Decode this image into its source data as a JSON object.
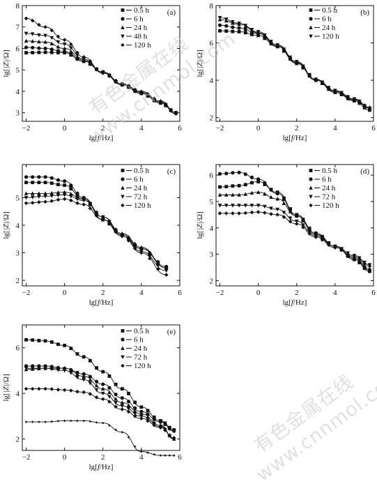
{
  "watermark": {
    "cn": "有色金属在线",
    "url": "www.cnnmol.com"
  },
  "colors": {
    "ink": "#111111",
    "background": "#ffffff"
  },
  "chart_data": [
    {
      "type": "line",
      "panel_label": "(a)",
      "xlabel": "lg[f/Hz]",
      "ylabel": "lg[|Z|/Ω]",
      "xlim": [
        -2.2,
        6
      ],
      "ylim": [
        2.6,
        8
      ],
      "xticks": [
        -2,
        0,
        2,
        4,
        6
      ],
      "yticks": [
        3,
        4,
        5,
        6,
        7,
        8
      ],
      "series": [
        {
          "name": "0.5 h",
          "marker": "square",
          "x": [
            -2,
            -1,
            0,
            1,
            2,
            3,
            4,
            5,
            5.8
          ],
          "y": [
            5.8,
            5.82,
            5.8,
            5.4,
            4.9,
            4.3,
            3.9,
            3.45,
            3.0
          ]
        },
        {
          "name": "6 h",
          "marker": "circle",
          "x": [
            -2,
            -1,
            0,
            1,
            2,
            3,
            4,
            5,
            5.8
          ],
          "y": [
            6.05,
            6.0,
            5.85,
            5.4,
            4.9,
            4.35,
            3.95,
            3.5,
            3.0
          ]
        },
        {
          "name": "24 h",
          "marker": "triangle-up",
          "x": [
            -2,
            -1,
            0,
            1,
            2,
            3,
            4,
            5,
            5.8
          ],
          "y": [
            6.35,
            6.3,
            6.0,
            5.45,
            4.9,
            4.35,
            4.0,
            3.55,
            3.0
          ]
        },
        {
          "name": "48 h",
          "marker": "triangle-down",
          "x": [
            -2,
            -1,
            0,
            1,
            2,
            3,
            4,
            5,
            5.8
          ],
          "y": [
            6.7,
            6.6,
            6.2,
            5.5,
            4.85,
            4.3,
            3.95,
            3.5,
            3.0
          ]
        },
        {
          "name": "120 h",
          "marker": "diamond",
          "x": [
            -2,
            -1,
            0,
            1,
            2,
            3,
            4,
            5,
            5.8
          ],
          "y": [
            7.4,
            7.0,
            6.4,
            5.6,
            4.85,
            4.3,
            3.9,
            3.5,
            2.95
          ]
        }
      ]
    },
    {
      "type": "line",
      "panel_label": "(b)",
      "xlabel": "lg[f/Hz]",
      "ylabel": "lg[|Z|/Ω]",
      "xlim": [
        -2.2,
        6
      ],
      "ylim": [
        1.8,
        8
      ],
      "xticks": [
        -2,
        0,
        2,
        4,
        6
      ],
      "yticks": [
        2,
        4,
        6,
        8
      ],
      "series": [
        {
          "name": "0.5 h",
          "marker": "square",
          "x": [
            -2,
            -1,
            0,
            1,
            2,
            3,
            4,
            5,
            5.8
          ],
          "y": [
            6.65,
            6.6,
            6.4,
            5.8,
            4.9,
            4.0,
            3.35,
            2.9,
            2.4
          ]
        },
        {
          "name": "6 h",
          "marker": "circle",
          "x": [
            -2,
            -1,
            0,
            1,
            2,
            3,
            4,
            5,
            5.8
          ],
          "y": [
            6.95,
            6.8,
            6.5,
            5.85,
            4.95,
            4.0,
            3.4,
            2.95,
            2.5
          ]
        },
        {
          "name": "24 h",
          "marker": "triangle-up",
          "x": [
            -2,
            -1,
            0,
            1,
            2,
            3,
            4,
            5,
            5.8
          ],
          "y": [
            7.25,
            7.0,
            6.55,
            5.85,
            4.95,
            4.05,
            3.45,
            3.0,
            2.55
          ]
        },
        {
          "name": "120 h",
          "marker": "triangle-down",
          "x": [
            -2,
            -1,
            0,
            1,
            2,
            3,
            4,
            5,
            5.8
          ],
          "y": [
            7.35,
            7.05,
            6.6,
            5.9,
            5.0,
            4.05,
            3.45,
            3.0,
            2.5
          ]
        }
      ]
    },
    {
      "type": "line",
      "panel_label": "(c)",
      "xlabel": "lg[f/Hz]",
      "ylabel": "lg[|Z|/Ω]",
      "xlim": [
        -2.2,
        6
      ],
      "ylim": [
        1.8,
        6.2
      ],
      "xticks": [
        -2,
        0,
        2,
        4,
        6
      ],
      "yticks": [
        2,
        3,
        4,
        5
      ],
      "series": [
        {
          "name": "0.5 h",
          "marker": "square",
          "x": [
            -2,
            -1,
            0,
            1,
            2,
            3,
            4,
            5.3
          ],
          "y": [
            5.55,
            5.55,
            5.45,
            4.95,
            4.2,
            3.65,
            3.15,
            2.45
          ]
        },
        {
          "name": "6 h",
          "marker": "circle",
          "x": [
            -2,
            -1,
            0,
            1,
            2,
            3,
            4,
            5.3
          ],
          "y": [
            5.75,
            5.75,
            5.6,
            5.0,
            4.2,
            3.65,
            3.15,
            2.5
          ]
        },
        {
          "name": "24 h",
          "marker": "triangle-up",
          "x": [
            -2,
            -1,
            0,
            1,
            2,
            3,
            4,
            5.3
          ],
          "y": [
            5.15,
            5.15,
            5.2,
            4.95,
            4.3,
            3.7,
            3.2,
            2.45
          ]
        },
        {
          "name": "72 h",
          "marker": "triangle-down",
          "x": [
            -2,
            -1,
            0,
            1,
            2,
            3,
            4,
            5.3
          ],
          "y": [
            5.0,
            5.05,
            5.1,
            4.9,
            4.3,
            3.65,
            3.05,
            2.35
          ]
        },
        {
          "name": "120 h",
          "marker": "diamond",
          "x": [
            -2,
            -1,
            0,
            1,
            2,
            3,
            4,
            5.3
          ],
          "y": [
            4.8,
            4.85,
            4.95,
            4.75,
            4.2,
            3.6,
            3.0,
            2.2
          ]
        }
      ]
    },
    {
      "type": "line",
      "panel_label": "(d)",
      "xlabel": "lg[f/Hz]",
      "ylabel": "lg[|Z|/Ω]",
      "xlim": [
        -2.2,
        6
      ],
      "ylim": [
        1.8,
        6.4
      ],
      "xticks": [
        -2,
        0,
        2,
        4,
        6
      ],
      "yticks": [
        2,
        3,
        4,
        5,
        6
      ],
      "series": [
        {
          "name": "0.5 h",
          "marker": "square",
          "x": [
            -2,
            -1,
            0,
            1,
            2,
            3,
            4,
            5,
            5.8
          ],
          "y": [
            5.55,
            5.6,
            5.75,
            5.35,
            4.5,
            3.8,
            3.3,
            2.8,
            2.35
          ]
        },
        {
          "name": "6 h",
          "marker": "circle",
          "x": [
            -2,
            -1,
            0,
            1,
            2,
            3,
            4,
            5,
            5.8
          ],
          "y": [
            6.05,
            6.1,
            5.85,
            5.3,
            4.45,
            3.75,
            3.3,
            2.8,
            2.4
          ]
        },
        {
          "name": "24 h",
          "marker": "triangle-up",
          "x": [
            -2,
            -1,
            0,
            1,
            2,
            3,
            4,
            5,
            5.8
          ],
          "y": [
            5.25,
            5.25,
            5.35,
            5.1,
            4.45,
            3.75,
            3.3,
            2.85,
            2.45
          ]
        },
        {
          "name": "72 h",
          "marker": "triangle-down",
          "x": [
            -2,
            -1,
            0,
            1,
            2,
            3,
            4,
            5,
            5.8
          ],
          "y": [
            4.85,
            4.85,
            4.85,
            4.7,
            4.25,
            3.7,
            3.3,
            2.95,
            2.6
          ]
        },
        {
          "name": "120 h",
          "marker": "diamond",
          "x": [
            -2,
            -1,
            0,
            1,
            2,
            3,
            4,
            5,
            5.8
          ],
          "y": [
            4.55,
            4.55,
            4.6,
            4.5,
            4.15,
            3.65,
            3.25,
            2.9,
            2.55
          ]
        }
      ]
    },
    {
      "type": "line",
      "panel_label": "(e)",
      "xlabel": "lg[f/Hz]",
      "ylabel": "lg[|Z|/Ω]",
      "xlim": [
        -2.2,
        6
      ],
      "ylim": [
        1.5,
        7
      ],
      "xticks": [
        -2,
        0,
        2,
        4,
        6
      ],
      "yticks": [
        2,
        4,
        6
      ],
      "series": [
        {
          "name": "0.5 h",
          "marker": "square",
          "x": [
            -2,
            -1,
            0,
            1,
            2,
            3,
            4,
            5,
            5.7
          ],
          "y": [
            6.35,
            6.3,
            6.1,
            5.6,
            4.95,
            4.2,
            3.4,
            2.8,
            2.4
          ]
        },
        {
          "name": "6 h",
          "marker": "circle",
          "x": [
            -2,
            -1,
            0,
            1,
            2,
            3,
            4,
            5,
            5.7
          ],
          "y": [
            5.2,
            5.2,
            5.1,
            4.85,
            4.4,
            3.8,
            3.2,
            2.75,
            2.35
          ]
        },
        {
          "name": "24 h",
          "marker": "triangle-up",
          "x": [
            -2,
            -1,
            0,
            1,
            2,
            3,
            4,
            5,
            5.7
          ],
          "y": [
            5.05,
            5.1,
            5.1,
            4.75,
            4.2,
            3.6,
            3.1,
            2.6,
            2.0
          ]
        },
        {
          "name": "72 h",
          "marker": "triangle-down",
          "x": [
            -2,
            -1,
            0,
            1,
            2,
            3,
            4,
            5,
            5.7
          ],
          "y": [
            5.1,
            5.1,
            5.0,
            4.6,
            4.0,
            3.45,
            3.0,
            2.55,
            2.0
          ]
        },
        {
          "name": "120 h",
          "marker": "diamond",
          "x": [
            -2,
            -1,
            0,
            1,
            2,
            3,
            4,
            5,
            5.7
          ],
          "y": [
            4.2,
            4.2,
            4.15,
            4.05,
            3.75,
            3.3,
            2.9,
            2.5,
            2.05
          ]
        },
        {
          "name": "",
          "marker": "diamond-small",
          "x": [
            -2,
            -1,
            0,
            1,
            2,
            3,
            4,
            5,
            5.7
          ],
          "y": [
            2.75,
            2.75,
            2.8,
            2.8,
            2.7,
            2.3,
            1.45,
            1.28,
            1.28
          ]
        }
      ]
    }
  ]
}
